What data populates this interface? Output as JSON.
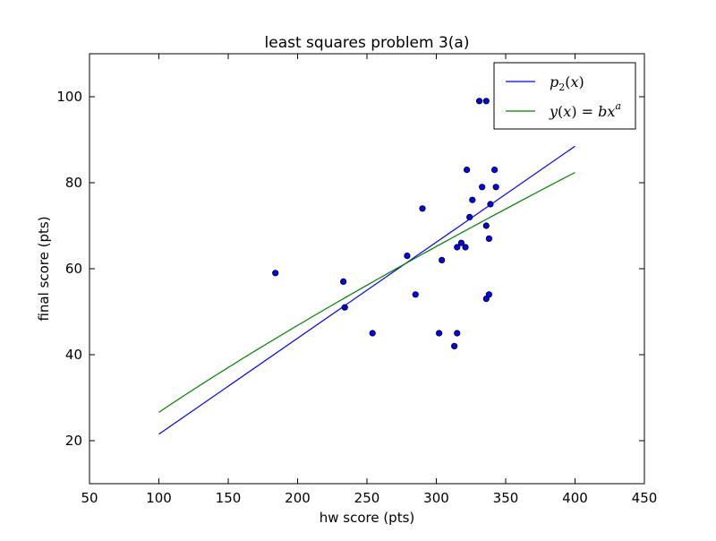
{
  "chart_data": {
    "type": "scatter",
    "title": "least squares problem 3(a)",
    "xlabel": "hw score (pts)",
    "ylabel": "final score (pts)",
    "xlim": [
      50,
      450
    ],
    "ylim": [
      10,
      110
    ],
    "xticks": [
      50,
      100,
      150,
      200,
      250,
      300,
      350,
      400,
      450
    ],
    "yticks": [
      20,
      40,
      60,
      80,
      100
    ],
    "grid": false,
    "legend_position": "top-right",
    "points": [
      {
        "x": 184,
        "y": 59
      },
      {
        "x": 233,
        "y": 57
      },
      {
        "x": 234,
        "y": 51
      },
      {
        "x": 254,
        "y": 45
      },
      {
        "x": 279,
        "y": 63
      },
      {
        "x": 285,
        "y": 54
      },
      {
        "x": 290,
        "y": 74
      },
      {
        "x": 302,
        "y": 45
      },
      {
        "x": 304,
        "y": 62
      },
      {
        "x": 313,
        "y": 42
      },
      {
        "x": 315,
        "y": 45
      },
      {
        "x": 315,
        "y": 65
      },
      {
        "x": 318,
        "y": 66
      },
      {
        "x": 321,
        "y": 65
      },
      {
        "x": 322,
        "y": 83
      },
      {
        "x": 324,
        "y": 72
      },
      {
        "x": 326,
        "y": 76
      },
      {
        "x": 331,
        "y": 99
      },
      {
        "x": 333,
        "y": 79
      },
      {
        "x": 336,
        "y": 53
      },
      {
        "x": 336,
        "y": 70
      },
      {
        "x": 336,
        "y": 99
      },
      {
        "x": 338,
        "y": 54
      },
      {
        "x": 338,
        "y": 67
      },
      {
        "x": 339,
        "y": 75
      },
      {
        "x": 342,
        "y": 83
      },
      {
        "x": 343,
        "y": 79
      }
    ],
    "series": [
      {
        "name": "p_2(x)",
        "color": "#0000ff",
        "kind": "linear",
        "x": [
          100,
          400
        ],
        "y": [
          21.5,
          88.5
        ]
      },
      {
        "name": "y(x)=bx^a",
        "color": "#008000",
        "kind": "power",
        "x": [
          100,
          400
        ],
        "y": [
          26.6,
          82.4
        ]
      }
    ],
    "point_color": "#0000ff"
  }
}
